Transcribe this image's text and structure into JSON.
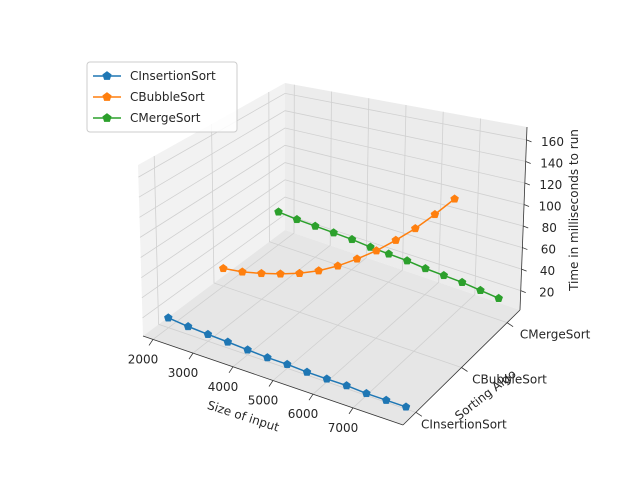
{
  "chart_data": {
    "type": "line",
    "projection": "3d",
    "xlabel": "Size of input",
    "ylabel": "Sorting Algo",
    "zlabel": "Time in milliseconds to run",
    "x_ticks": [
      2000,
      3000,
      4000,
      5000,
      6000,
      7000
    ],
    "y_ticks": [
      "CInsertionSort",
      "CBubbleSort",
      "CMergeSort"
    ],
    "z_ticks": [
      20,
      40,
      60,
      80,
      100,
      120,
      140,
      160
    ],
    "xlim": [
      1750,
      8250
    ],
    "zlim": [
      2,
      172
    ],
    "legend_position": "upper-left",
    "grid": true,
    "marker": "pentagon",
    "series": [
      {
        "name": "CInsertionSort",
        "color": "#1f77b4",
        "y": "CInsertionSort",
        "x": [
          2000,
          2500,
          3000,
          3500,
          4000,
          4500,
          5000,
          5500,
          6000,
          6500,
          7000,
          7500,
          8000
        ],
        "values": [
          12,
          10,
          9,
          8,
          7,
          6,
          6,
          5,
          5,
          5,
          4,
          4,
          4
        ]
      },
      {
        "name": "CBubbleSort",
        "color": "#ff7f0e",
        "y": "CBubbleSort",
        "x": [
          2000,
          2500,
          3000,
          3500,
          4000,
          4500,
          5000,
          5500,
          6000,
          6500,
          7000,
          7500,
          8000
        ],
        "values": [
          21,
          24,
          29,
          35,
          42,
          51,
          62,
          75,
          89,
          105,
          122,
          141,
          161
        ]
      },
      {
        "name": "CMergeSort",
        "color": "#2ca02c",
        "y": "CMergeSort",
        "x": [
          2000,
          2500,
          3000,
          3500,
          4000,
          4500,
          5000,
          5500,
          6000,
          6500,
          7000,
          7500,
          8000
        ],
        "values": [
          39,
          37,
          36,
          35,
          34,
          32,
          31,
          30,
          28,
          27,
          26,
          24,
          22
        ]
      }
    ]
  }
}
